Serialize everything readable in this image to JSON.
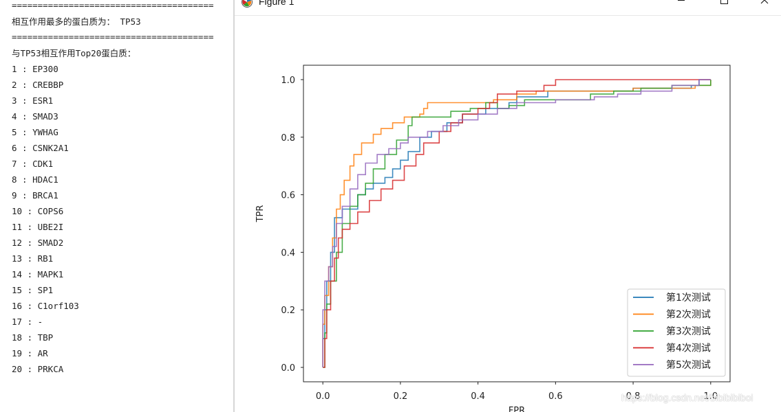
{
  "console": {
    "sep1": "=======================================",
    "top_protein_line": "相互作用最多的蛋白质为： TP53",
    "sep2": "=======================================",
    "top20_header": "与TP53相互作用Top20蛋白质：",
    "items": [
      "1 : EP300",
      "2 : CREBBP",
      "3 : ESR1",
      "4 : SMAD3",
      "5 : YWHAG",
      "6 : CSNK2A1",
      "7 : CDK1",
      "8 : HDAC1",
      "9 : BRCA1",
      "10 : COPS6",
      "11 : UBE2I",
      "12 : SMAD2",
      "13 : RB1",
      "14 : MAPK1",
      "15 : SP1",
      "16 : C1orf103",
      "17 : -",
      "18 : TBP",
      "19 : AR",
      "20 : PRKCA"
    ]
  },
  "window": {
    "title": "Figure 1",
    "icon": "matplotlib-icon",
    "controls": [
      "minimize-icon",
      "maximize-icon",
      "close-icon"
    ]
  },
  "watermark": "https://blog.csdn.net/bibibibiboi",
  "colors": {
    "series": [
      "#1f77b4",
      "#ff7f0e",
      "#2ca02c",
      "#d62728",
      "#9467bd"
    ],
    "axis": "#222222"
  },
  "chart_data": {
    "type": "line",
    "title": "",
    "xlabel": "FPR",
    "ylabel": "TPR",
    "xlim": [
      -0.05,
      1.05
    ],
    "ylim": [
      -0.05,
      1.05
    ],
    "xticks": [
      0.0,
      0.2,
      0.4,
      0.6,
      0.8,
      1.0
    ],
    "yticks": [
      0.0,
      0.2,
      0.4,
      0.6,
      0.8,
      1.0
    ],
    "xtick_labels": [
      "0.0",
      "0.2",
      "0.4",
      "0.6",
      "0.8",
      "1.0"
    ],
    "ytick_labels": [
      "0.0",
      "0.2",
      "0.4",
      "0.6",
      "0.8",
      "1.0"
    ],
    "legend_position": "lower-right",
    "series": [
      {
        "name": "第1次测试",
        "points": [
          [
            0,
            0
          ],
          [
            0,
            0.1
          ],
          [
            0.005,
            0.2
          ],
          [
            0.01,
            0.3
          ],
          [
            0.02,
            0.4
          ],
          [
            0.03,
            0.5
          ],
          [
            0.03,
            0.52
          ],
          [
            0.05,
            0.52
          ],
          [
            0.05,
            0.55
          ],
          [
            0.08,
            0.55
          ],
          [
            0.09,
            0.6
          ],
          [
            0.11,
            0.62
          ],
          [
            0.13,
            0.64
          ],
          [
            0.16,
            0.66
          ],
          [
            0.18,
            0.69
          ],
          [
            0.2,
            0.72
          ],
          [
            0.22,
            0.75
          ],
          [
            0.25,
            0.8
          ],
          [
            0.28,
            0.82
          ],
          [
            0.32,
            0.85
          ],
          [
            0.36,
            0.88
          ],
          [
            0.42,
            0.9
          ],
          [
            0.48,
            0.92
          ],
          [
            0.5,
            0.94
          ],
          [
            0.58,
            0.96
          ],
          [
            0.7,
            0.96
          ],
          [
            0.8,
            0.97
          ],
          [
            0.95,
            0.98
          ],
          [
            0.97,
            1.0
          ],
          [
            1.0,
            1.0
          ]
        ]
      },
      {
        "name": "第2次测试",
        "points": [
          [
            0,
            0
          ],
          [
            0,
            0.15
          ],
          [
            0.005,
            0.25
          ],
          [
            0.015,
            0.35
          ],
          [
            0.025,
            0.45
          ],
          [
            0.035,
            0.55
          ],
          [
            0.045,
            0.6
          ],
          [
            0.055,
            0.65
          ],
          [
            0.07,
            0.7
          ],
          [
            0.08,
            0.74
          ],
          [
            0.1,
            0.78
          ],
          [
            0.13,
            0.81
          ],
          [
            0.15,
            0.83
          ],
          [
            0.18,
            0.85
          ],
          [
            0.21,
            0.87
          ],
          [
            0.25,
            0.88
          ],
          [
            0.26,
            0.9
          ],
          [
            0.27,
            0.92
          ],
          [
            0.4,
            0.92
          ],
          [
            0.44,
            0.93
          ],
          [
            0.5,
            0.95
          ],
          [
            0.55,
            0.96
          ],
          [
            0.7,
            0.96
          ],
          [
            0.8,
            0.97
          ],
          [
            0.96,
            0.98
          ],
          [
            1.0,
            1.0
          ]
        ]
      },
      {
        "name": "第3次测试",
        "points": [
          [
            0,
            0
          ],
          [
            0.005,
            0.12
          ],
          [
            0.01,
            0.22
          ],
          [
            0.02,
            0.3
          ],
          [
            0.035,
            0.4
          ],
          [
            0.05,
            0.5
          ],
          [
            0.07,
            0.56
          ],
          [
            0.09,
            0.6
          ],
          [
            0.11,
            0.64
          ],
          [
            0.13,
            0.69
          ],
          [
            0.16,
            0.74
          ],
          [
            0.19,
            0.79
          ],
          [
            0.22,
            0.84
          ],
          [
            0.23,
            0.87
          ],
          [
            0.3,
            0.87
          ],
          [
            0.33,
            0.89
          ],
          [
            0.38,
            0.9
          ],
          [
            0.42,
            0.92
          ],
          [
            0.45,
            0.9
          ],
          [
            0.48,
            0.91
          ],
          [
            0.52,
            0.93
          ],
          [
            0.58,
            0.93
          ],
          [
            0.68,
            0.93
          ],
          [
            0.69,
            0.95
          ],
          [
            0.75,
            0.96
          ],
          [
            0.82,
            0.97
          ],
          [
            0.9,
            0.98
          ],
          [
            0.98,
            0.98
          ],
          [
            1.0,
            1.0
          ]
        ]
      },
      {
        "name": "第4次测试",
        "points": [
          [
            0,
            0
          ],
          [
            0.005,
            0.1
          ],
          [
            0.01,
            0.2
          ],
          [
            0.02,
            0.3
          ],
          [
            0.03,
            0.38
          ],
          [
            0.04,
            0.45
          ],
          [
            0.05,
            0.48
          ],
          [
            0.07,
            0.5
          ],
          [
            0.09,
            0.54
          ],
          [
            0.12,
            0.58
          ],
          [
            0.15,
            0.62
          ],
          [
            0.18,
            0.65
          ],
          [
            0.21,
            0.7
          ],
          [
            0.24,
            0.74
          ],
          [
            0.26,
            0.78
          ],
          [
            0.3,
            0.82
          ],
          [
            0.33,
            0.85
          ],
          [
            0.36,
            0.88
          ],
          [
            0.4,
            0.9
          ],
          [
            0.43,
            0.92
          ],
          [
            0.45,
            0.95
          ],
          [
            0.5,
            0.96
          ],
          [
            0.57,
            0.98
          ],
          [
            0.6,
            1.0
          ],
          [
            1.0,
            1.0
          ]
        ]
      },
      {
        "name": "第5次测试",
        "points": [
          [
            0,
            0
          ],
          [
            0,
            0.2
          ],
          [
            0.005,
            0.3
          ],
          [
            0.015,
            0.35
          ],
          [
            0.025,
            0.42
          ],
          [
            0.035,
            0.5
          ],
          [
            0.05,
            0.56
          ],
          [
            0.07,
            0.62
          ],
          [
            0.09,
            0.67
          ],
          [
            0.11,
            0.71
          ],
          [
            0.14,
            0.74
          ],
          [
            0.17,
            0.76
          ],
          [
            0.2,
            0.78
          ],
          [
            0.22,
            0.8
          ],
          [
            0.27,
            0.82
          ],
          [
            0.31,
            0.84
          ],
          [
            0.35,
            0.86
          ],
          [
            0.4,
            0.88
          ],
          [
            0.45,
            0.9
          ],
          [
            0.5,
            0.92
          ],
          [
            0.6,
            0.93
          ],
          [
            0.7,
            0.94
          ],
          [
            0.76,
            0.95
          ],
          [
            0.82,
            0.96
          ],
          [
            0.9,
            0.98
          ],
          [
            0.96,
            0.98
          ],
          [
            0.97,
            1.0
          ],
          [
            1.0,
            1.0
          ]
        ]
      }
    ]
  }
}
